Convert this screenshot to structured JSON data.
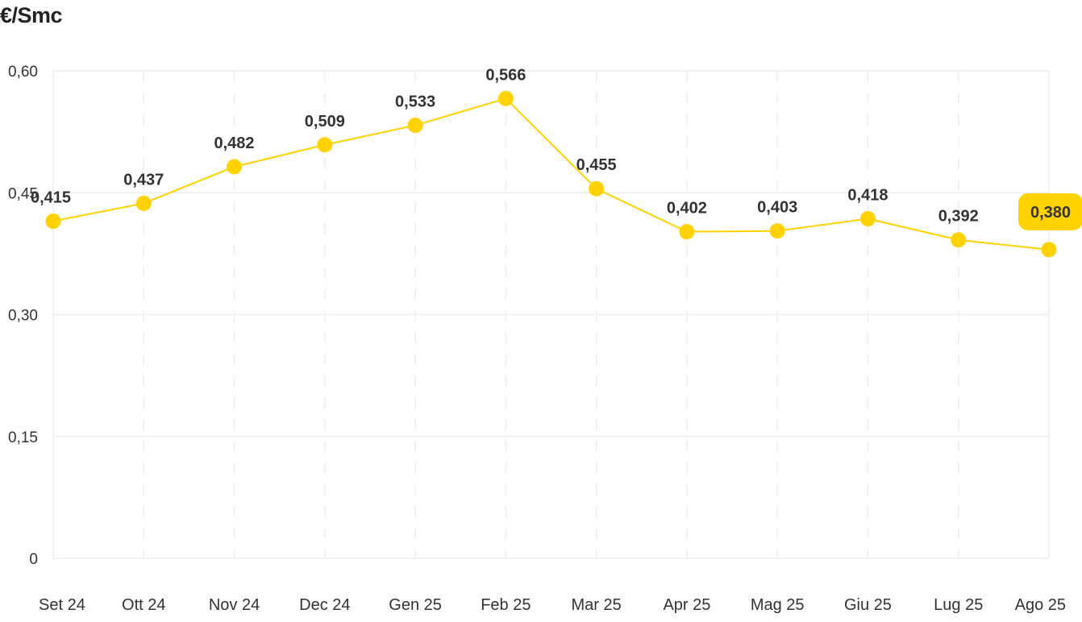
{
  "chart_data": {
    "type": "line",
    "title": "€/Smc",
    "xlabel": "",
    "ylabel": "",
    "categories": [
      "Set 24",
      "Ott 24",
      "Nov 24",
      "Dec 24",
      "Gen 25",
      "Feb 25",
      "Mar 25",
      "Apr 25",
      "Mag 25",
      "Giu 25",
      "Lug 25",
      "Ago 25"
    ],
    "series": [
      {
        "values": [
          0.415,
          0.437,
          0.482,
          0.509,
          0.533,
          0.566,
          0.455,
          0.402,
          0.403,
          0.418,
          0.392,
          0.38
        ],
        "labels": [
          "0,415",
          "0,437",
          "0,482",
          "0,509",
          "0,533",
          "0,566",
          "0,455",
          "0,402",
          "0,403",
          "0,418",
          "0,392",
          "0,380"
        ]
      }
    ],
    "ylim": [
      0,
      0.6
    ],
    "yticks": [
      "0",
      "0,15",
      "0,30",
      "0,45",
      "0,60"
    ],
    "grid": true,
    "highlight_last": true,
    "colors": {
      "line": "#FFD200",
      "highlight_badge": "#FFD200",
      "grid": "#EEEEEE",
      "text": "#333333"
    }
  }
}
